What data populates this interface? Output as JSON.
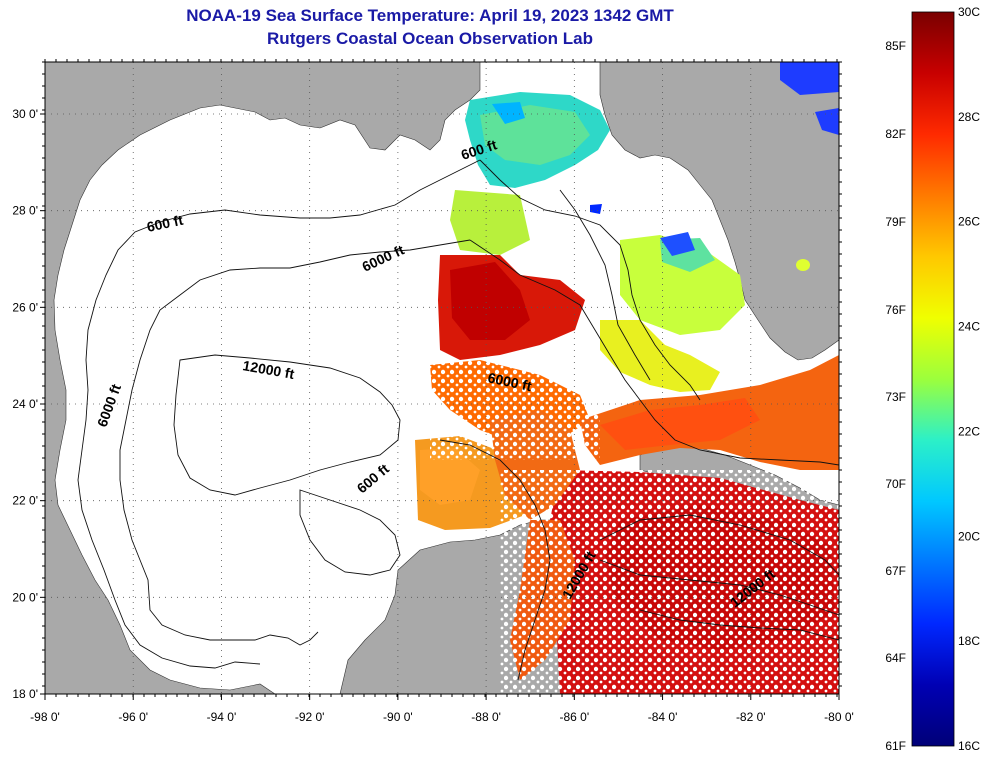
{
  "title": "NOAA-19 Sea Surface Temperature:  April 19, 2023 1342 GMT",
  "subtitle": "Rutgers Coastal Ocean Observation Lab",
  "lat_ticks": [
    {
      "label": "30 0'"
    },
    {
      "label": "28 0'"
    },
    {
      "label": "26 0'"
    },
    {
      "label": "24 0'"
    },
    {
      "label": "22 0'"
    },
    {
      "label": "20 0'"
    },
    {
      "label": "18 0'"
    }
  ],
  "lon_ticks": [
    {
      "label": "-98 0'"
    },
    {
      "label": "-96 0'"
    },
    {
      "label": "-94 0'"
    },
    {
      "label": "-92 0'"
    },
    {
      "label": "-90 0'"
    },
    {
      "label": "-88 0'"
    },
    {
      "label": "-86 0'"
    },
    {
      "label": "-84 0'"
    },
    {
      "label": "-82 0'"
    },
    {
      "label": "-80 0'"
    }
  ],
  "contour_labels": [
    {
      "text": "600 ft"
    },
    {
      "text": "6000 ft"
    },
    {
      "text": "600 ft"
    },
    {
      "text": "12000 ft"
    },
    {
      "text": "6000 ft"
    },
    {
      "text": "6000 ft"
    },
    {
      "text": "600 ft"
    },
    {
      "text": "12000 ft"
    },
    {
      "text": "12000 ft"
    }
  ],
  "colorbar": {
    "fahrenheit": [
      "85F",
      "82F",
      "79F",
      "76F",
      "73F",
      "70F",
      "67F",
      "64F",
      "61F"
    ],
    "celsius": [
      "30C",
      "28C",
      "26C",
      "24C",
      "22C",
      "20C",
      "18C",
      "16C"
    ],
    "colors": [
      "#7a0000",
      "#c80000",
      "#ff2a00",
      "#ff7a00",
      "#ffc800",
      "#f0ff00",
      "#9cff3c",
      "#2cf0c8",
      "#00c8ff",
      "#0078ff",
      "#0028ff",
      "#0000b4",
      "#000078"
    ]
  },
  "colors": {
    "land": "#a9a9a9",
    "ocean_no_data": "#ffffff",
    "title": "#1a1aa6"
  }
}
